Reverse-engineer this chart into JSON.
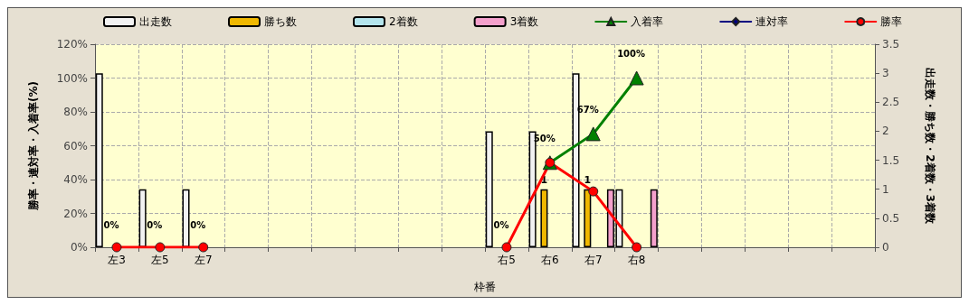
{
  "chart_data": {
    "type": "bar",
    "xlabel": "枠番",
    "ylabel": "勝率・連対率・入着率(%)",
    "y2label": "出走数・勝ち数・2着数・3着数",
    "categories": [
      "左3",
      "左5",
      "左7",
      null,
      null,
      null,
      null,
      null,
      null,
      "右5",
      "右6",
      "右7",
      "右8",
      null,
      null,
      null,
      null,
      null
    ],
    "series": [
      {
        "name": "出走数",
        "axis": "y2",
        "color": "#f2f2f2",
        "values": [
          3,
          1,
          1,
          null,
          null,
          null,
          null,
          null,
          null,
          2,
          2,
          3,
          1,
          null,
          null,
          null,
          null,
          null
        ]
      },
      {
        "name": "勝ち数",
        "axis": "y2",
        "color": "#f0b800",
        "values": [
          null,
          null,
          null,
          null,
          null,
          null,
          null,
          null,
          null,
          null,
          1,
          1,
          null,
          null,
          null,
          null,
          null,
          null
        ],
        "value_labels": [
          null,
          null,
          null,
          null,
          null,
          null,
          null,
          null,
          null,
          null,
          "1",
          "1",
          null,
          null,
          null,
          null,
          null,
          null
        ]
      },
      {
        "name": "2着数",
        "axis": "y2",
        "color": "#b4e4ec",
        "values": [
          null,
          null,
          null,
          null,
          null,
          null,
          null,
          null,
          null,
          null,
          null,
          null,
          null,
          null,
          null,
          null,
          null,
          null
        ]
      },
      {
        "name": "3着数",
        "axis": "y2",
        "color": "#f4a0cc",
        "values": [
          null,
          null,
          null,
          null,
          null,
          null,
          null,
          null,
          null,
          null,
          null,
          1,
          1,
          null,
          null,
          null,
          null,
          null
        ]
      },
      {
        "name": "入着率",
        "type": "line",
        "marker": "triangle",
        "color": "#008000",
        "values": [
          null,
          null,
          null,
          null,
          null,
          null,
          null,
          null,
          null,
          null,
          50,
          67,
          100,
          null,
          null,
          null,
          null,
          null
        ],
        "value_labels": [
          null,
          null,
          null,
          null,
          null,
          null,
          null,
          null,
          null,
          null,
          "50%",
          "67%",
          "100%",
          null,
          null,
          null,
          null,
          null
        ]
      },
      {
        "name": "連対率",
        "type": "line",
        "marker": "diamond",
        "color": "#000080",
        "values": [
          null,
          null,
          null,
          null,
          null,
          null,
          null,
          null,
          null,
          null,
          null,
          null,
          null,
          null,
          null,
          null,
          null,
          null
        ]
      },
      {
        "name": "勝率",
        "type": "line",
        "marker": "circle",
        "color": "#ff0000",
        "values": [
          0,
          0,
          0,
          null,
          null,
          null,
          null,
          null,
          null,
          0,
          50,
          33,
          0,
          null,
          null,
          null,
          null,
          null
        ],
        "value_labels": [
          "0%",
          "0%",
          "0%",
          null,
          null,
          null,
          null,
          null,
          null,
          "0%",
          null,
          null,
          null,
          null,
          null,
          null,
          null,
          null
        ]
      }
    ],
    "ylim": [
      0,
      120
    ],
    "yticks": [
      {
        "value": 0,
        "label": "0%"
      },
      {
        "value": 20,
        "label": "20%"
      },
      {
        "value": 40,
        "label": "40%"
      },
      {
        "value": 60,
        "label": "60%"
      },
      {
        "value": 80,
        "label": "80%"
      },
      {
        "value": 100,
        "label": "100%"
      },
      {
        "value": 120,
        "label": "120%"
      }
    ],
    "y2lim": [
      0,
      3.5
    ],
    "y2ticks": [
      0,
      0.5,
      1,
      1.5,
      2,
      2.5,
      3,
      3.5
    ],
    "grid": true,
    "legend": "top"
  }
}
